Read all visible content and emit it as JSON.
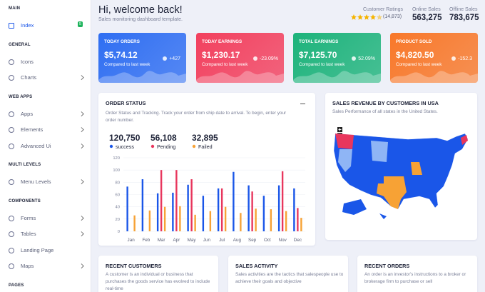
{
  "sidebar": {
    "sections": [
      {
        "title": "MAIN",
        "items": [
          {
            "label": "Index",
            "badge": "5"
          }
        ]
      },
      {
        "title": "GENERAL",
        "items": [
          {
            "label": "Icons"
          },
          {
            "label": "Charts"
          }
        ]
      },
      {
        "title": "WEB APPS",
        "items": [
          {
            "label": "Apps"
          },
          {
            "label": "Elements"
          },
          {
            "label": "Advanced Ui"
          }
        ]
      },
      {
        "title": "MULTI LEVELS",
        "items": [
          {
            "label": "Menu Levels"
          }
        ]
      },
      {
        "title": "COMPONENTS",
        "items": [
          {
            "label": "Forms"
          },
          {
            "label": "Tables"
          },
          {
            "label": "Landing Page"
          },
          {
            "label": "Maps"
          }
        ]
      },
      {
        "title": "PAGES",
        "items": []
      }
    ]
  },
  "header": {
    "title": "Hi, welcome back!",
    "subtitle": "Sales monitoring dashboard template.",
    "ratings_label": "Customer Ratings",
    "ratings_count": "(14,873)",
    "online_label": "Online Sales",
    "online_value": "563,275",
    "offline_label": "Offline Sales",
    "offline_value": "783,675"
  },
  "cards": [
    {
      "title": "TODAY ORDERS",
      "value": "$5,74.12",
      "note": "Compared to last week",
      "change": "+427",
      "color": "#2f6ef2"
    },
    {
      "title": "TODAY EARNINGS",
      "value": "$1,230.17",
      "note": "Compared to last week",
      "change": "-23.09%",
      "color": "#f2405e"
    },
    {
      "title": "TOTAL EARNINGS",
      "value": "$7,125.70",
      "note": "Compared to last week",
      "change": "52.09%",
      "color": "#1db37b"
    },
    {
      "title": "PRODUCT SOLD",
      "value": "$4,820.50",
      "note": "Compared to last week",
      "change": "-152.3",
      "color": "#f8782a"
    }
  ],
  "chart_data": {
    "type": "bar",
    "title": "ORDER STATUS",
    "subtitle": "Order Status and Tracking. Track your order from ship date to arrival. To begin, enter your order number.",
    "categories": [
      "Jan",
      "Feb",
      "Mar",
      "Apr",
      "May",
      "Jun",
      "Jul",
      "Aug",
      "Sep",
      "Oct",
      "Nov",
      "Dec"
    ],
    "series": [
      {
        "name": "success",
        "total": "120,750",
        "color": "#1a56e8",
        "values": [
          73,
          85,
          62,
          63,
          76,
          58,
          70,
          97,
          75,
          58,
          75,
          70
        ]
      },
      {
        "name": "Pending",
        "total": "56,108",
        "color": "#e8365d",
        "values": [
          null,
          null,
          100,
          100,
          85,
          null,
          70,
          null,
          65,
          null,
          98,
          38
        ]
      },
      {
        "name": "Failed",
        "total": "32,895",
        "color": "#f7a235",
        "values": [
          26,
          34,
          40,
          41,
          27,
          33,
          40,
          30,
          37,
          36,
          33,
          22
        ]
      }
    ],
    "ylim": [
      0,
      120
    ],
    "yticks": [
      0,
      20,
      40,
      60,
      80,
      100,
      120
    ],
    "grid": true
  },
  "map": {
    "title": "SALES REVENUE BY CUSTOMERS IN USA",
    "subtitle": "Sales Performance of all states in the United States."
  },
  "bottom": [
    {
      "title": "RECENT CUSTOMERS",
      "text": "A customer is an individual or business that purchases the goods service has evolved to include real-time"
    },
    {
      "title": "SALES ACTIVITY",
      "text": "Sales activities are the tactics that salespeople use to achieve their goals and objective"
    },
    {
      "title": "RECENT ORDERS",
      "text": "An order is an investor's instructions to a broker or brokerage firm to purchase or sell"
    }
  ]
}
